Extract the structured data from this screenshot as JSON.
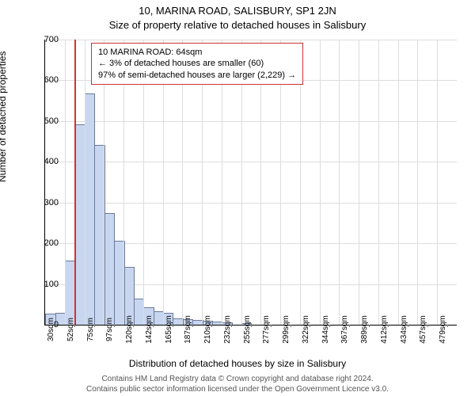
{
  "titles": {
    "address": "10, MARINA ROAD, SALISBURY, SP1 2JN",
    "subtitle": "Size of property relative to detached houses in Salisbury"
  },
  "axes": {
    "ylabel": "Number of detached properties",
    "xlabel": "Distribution of detached houses by size in Salisbury",
    "ylabel_fontsize": 12,
    "xlabel_fontsize": 12,
    "tick_fontsize": 11,
    "ylim": [
      0,
      700
    ],
    "ytick_step": 100,
    "yticks": [
      0,
      100,
      200,
      300,
      400,
      500,
      600,
      700
    ],
    "xtick_labels": [
      "30sqm",
      "52sqm",
      "75sqm",
      "97sqm",
      "120sqm",
      "142sqm",
      "165sqm",
      "187sqm",
      "210sqm",
      "232sqm",
      "255sqm",
      "277sqm",
      "299sqm",
      "322sqm",
      "344sqm",
      "367sqm",
      "389sqm",
      "412sqm",
      "434sqm",
      "457sqm",
      "479sqm"
    ],
    "grid_color": "#dddddd"
  },
  "chart": {
    "type": "histogram",
    "background_color": "#ffffff",
    "bar_fill": "#c8d6f0",
    "bar_stroke": "#6a7a99",
    "bar_width": 0.92,
    "values": [
      25,
      28,
      155,
      490,
      565,
      440,
      273,
      205,
      140,
      62,
      40,
      32,
      28,
      14,
      12,
      10,
      7,
      5,
      3,
      0,
      2,
      0,
      0,
      0,
      0,
      0,
      0,
      0,
      0,
      0,
      0,
      0,
      0,
      0,
      0,
      0,
      0,
      0,
      0,
      0,
      0,
      0
    ]
  },
  "marker": {
    "sqm": 64,
    "x_range": [
      30,
      502
    ],
    "color": "#cc3333",
    "width": 2
  },
  "annotation": {
    "border_color": "#cc3333",
    "bg": "#ffffff",
    "line1": "10 MARINA ROAD: 64sqm",
    "line2": "← 3% of detached houses are smaller (60)",
    "line3": "97% of semi-detached houses are larger (2,229) →"
  },
  "footer": {
    "line1": "Contains HM Land Registry data © Crown copyright and database right 2024.",
    "line2": "Contains public sector information licensed under the Open Government Licence v3.0.",
    "color": "#555555"
  }
}
